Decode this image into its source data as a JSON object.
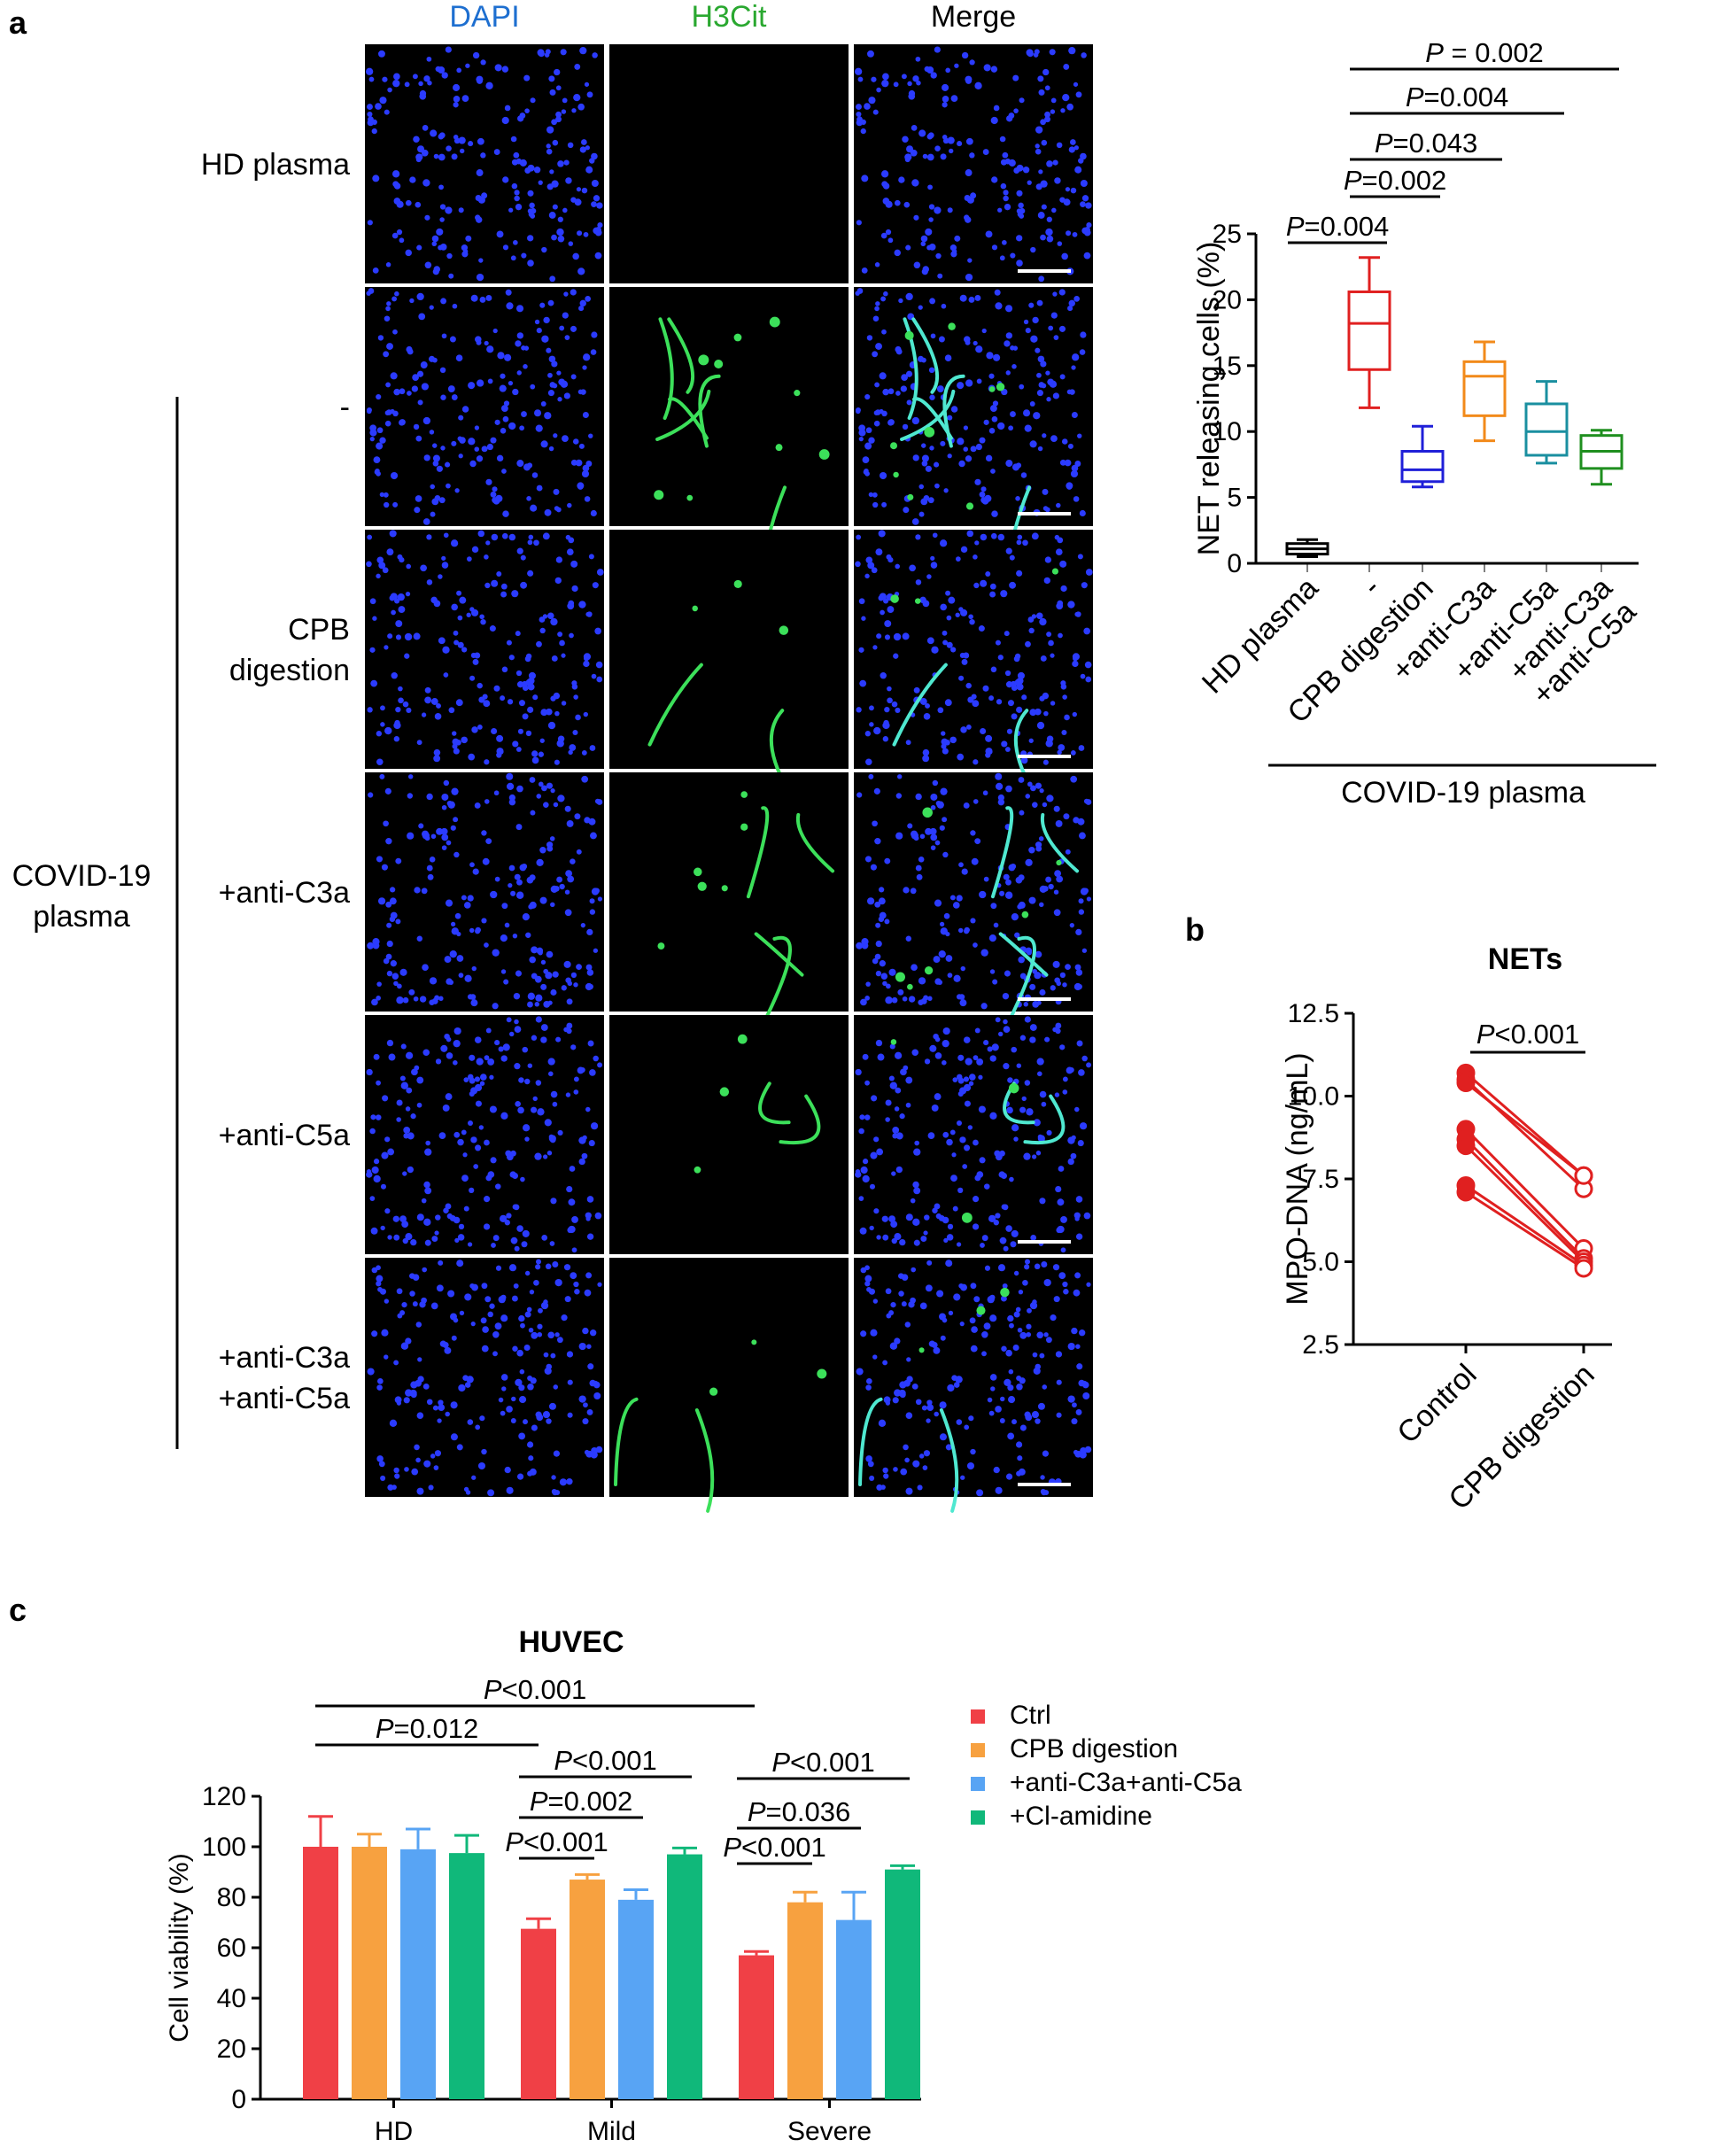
{
  "colors": {
    "hd": "#000000",
    "none": "#e02020",
    "cpb": "#1f1fd8",
    "c3a": "#f28a1a",
    "c5a": "#1a8fa0",
    "c3a_c5a": "#1f8f1f",
    "ctrl": "#f04046",
    "cpb_digestion": "#f7a140",
    "anti_c3a_c5a": "#58a4f4",
    "cl_amidine": "#10b87a",
    "dapi": "#1e6fd0",
    "h3cit": "#2aa830",
    "cell_blue": "#2b3bff",
    "net_green": "#3ce05a"
  },
  "panel_labels": {
    "a": "a",
    "b": "b",
    "c": "c"
  },
  "microscopy": {
    "columns": [
      "DAPI",
      "H3Cit",
      "Merge"
    ],
    "rows": [
      {
        "label": [
          "HD plasma"
        ],
        "net_level": 0
      },
      {
        "label": [
          "-"
        ],
        "net_level": 3
      },
      {
        "label": [
          "CPB",
          "digestion"
        ],
        "net_level": 1
      },
      {
        "label": [
          "+anti-C3a"
        ],
        "net_level": 2
      },
      {
        "label": [
          "+anti-C5a"
        ],
        "net_level": 1
      },
      {
        "label": [
          "+anti-C3a",
          "+anti-C5a"
        ],
        "net_level": 1
      }
    ],
    "group_label": [
      "COVID-19",
      "plasma"
    ]
  },
  "chart_data": [
    {
      "panel": "a",
      "type": "box",
      "ylabel": "NET releasing cells (%)",
      "ylim": [
        0,
        25
      ],
      "yticks": [
        0,
        5,
        10,
        15,
        20,
        25
      ],
      "categories": [
        "HD plasma",
        "-",
        "CPB digestion",
        "+anti-C3a",
        "+anti-C5a",
        "+anti-C3a\n+anti-C5a"
      ],
      "boxes": [
        {
          "min": 0.5,
          "q1": 0.7,
          "median": 1.1,
          "q3": 1.5,
          "max": 1.8
        },
        {
          "min": 11.8,
          "q1": 14.7,
          "median": 18.2,
          "q3": 20.6,
          "max": 23.2
        },
        {
          "min": 5.8,
          "q1": 6.2,
          "median": 7.1,
          "q3": 8.5,
          "max": 10.4
        },
        {
          "min": 9.3,
          "q1": 11.2,
          "median": 14.2,
          "q3": 15.3,
          "max": 16.8
        },
        {
          "min": 7.6,
          "q1": 8.2,
          "median": 10.0,
          "q3": 12.1,
          "max": 13.8
        },
        {
          "min": 6.0,
          "q1": 7.2,
          "median": 8.5,
          "q3": 9.7,
          "max": 10.1
        }
      ],
      "group_label": "COVID-19 plasma",
      "comparisons": [
        {
          "from": 0,
          "to": 1,
          "text": "P=0.004"
        },
        {
          "from": 1,
          "to": 2,
          "text": "P=0.002"
        },
        {
          "from": 1,
          "to": 3,
          "text": "P=0.043"
        },
        {
          "from": 1,
          "to": 4,
          "text": "P=0.004"
        },
        {
          "from": 1,
          "to": 5,
          "text": "P = 0.002"
        }
      ]
    },
    {
      "panel": "b",
      "type": "paired_scatter",
      "title": "NETs",
      "ylabel": "MPO-DNA (ng/mL)",
      "ylim": [
        2.5,
        12.5
      ],
      "yticks": [
        "2.5",
        "5.0",
        "7.5",
        "10.0",
        "12.5"
      ],
      "categories": [
        "Control",
        "CPB digestion"
      ],
      "pairs": [
        [
          10.7,
          7.6
        ],
        [
          10.5,
          7.2
        ],
        [
          10.4,
          7.6
        ],
        [
          9.0,
          5.4
        ],
        [
          8.7,
          5.1
        ],
        [
          8.5,
          5.0
        ],
        [
          7.3,
          4.9
        ],
        [
          7.1,
          4.8
        ]
      ],
      "comparisons": [
        {
          "from": 0,
          "to": 1,
          "text": "P<0.001"
        }
      ]
    },
    {
      "panel": "c",
      "type": "bar",
      "title": "HUVEC",
      "ylabel": "Cell viability (%)",
      "ylim": [
        0,
        120
      ],
      "yticks": [
        0,
        20,
        40,
        60,
        80,
        100,
        120
      ],
      "categories": [
        "HD",
        "Mild",
        "Severe"
      ],
      "series": [
        {
          "name": "Ctrl",
          "values": [
            100,
            67.5,
            57
          ],
          "errors": [
            12,
            4,
            1.5
          ]
        },
        {
          "name": "CPB digestion",
          "values": [
            100,
            87,
            78
          ],
          "errors": [
            5,
            2,
            4
          ]
        },
        {
          "name": "+anti-C3a+anti-C5a",
          "values": [
            99,
            79,
            71
          ],
          "errors": [
            8,
            4,
            11
          ]
        },
        {
          "name": "+Cl-amidine",
          "values": [
            97.5,
            97,
            91
          ],
          "errors": [
            7,
            2.5,
            1.5
          ]
        }
      ],
      "legend": "right",
      "comparisons": [
        {
          "text": "P<0.001",
          "from": [
            0,
            0
          ],
          "to": [
            1,
            3
          ]
        },
        {
          "text": "P=0.012",
          "from": [
            0,
            0
          ],
          "to": [
            1,
            0
          ]
        },
        {
          "text": "P<0.001",
          "from": [
            1,
            0
          ],
          "to": [
            1,
            3
          ]
        },
        {
          "text": "P=0.002",
          "from": [
            1,
            0
          ],
          "to": [
            1,
            2
          ]
        },
        {
          "text": "P<0.001",
          "from": [
            1,
            0
          ],
          "to": [
            1,
            1
          ]
        },
        {
          "text": "P<0.001",
          "from": [
            2,
            0
          ],
          "to": [
            2,
            3
          ]
        },
        {
          "text": "P=0.036",
          "from": [
            2,
            0
          ],
          "to": [
            2,
            2
          ]
        },
        {
          "text": "P<0.001",
          "from": [
            2,
            0
          ],
          "to": [
            2,
            1
          ]
        }
      ]
    }
  ]
}
